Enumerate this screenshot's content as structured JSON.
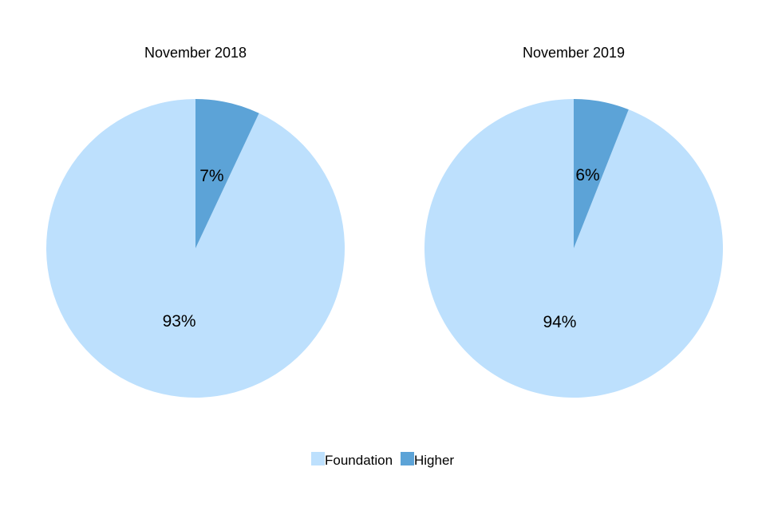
{
  "chart_data": [
    {
      "type": "pie",
      "title": "November 2018",
      "categories": [
        "Foundation",
        "Higher"
      ],
      "values": [
        93,
        7
      ],
      "labels": [
        "93%",
        "7%"
      ]
    },
    {
      "type": "pie",
      "title": "November 2019",
      "categories": [
        "Foundation",
        "Higher"
      ],
      "values": [
        94,
        6
      ],
      "labels": [
        "94%",
        "6%"
      ]
    }
  ],
  "legend": {
    "placement": "bottom-center",
    "items": [
      {
        "label": "Foundation",
        "color": "#bde0fd"
      },
      {
        "label": "Higher",
        "color": "#5ca3d7"
      }
    ]
  },
  "colors": {
    "Foundation": "#bde0fd",
    "Higher": "#5ca3d7"
  }
}
